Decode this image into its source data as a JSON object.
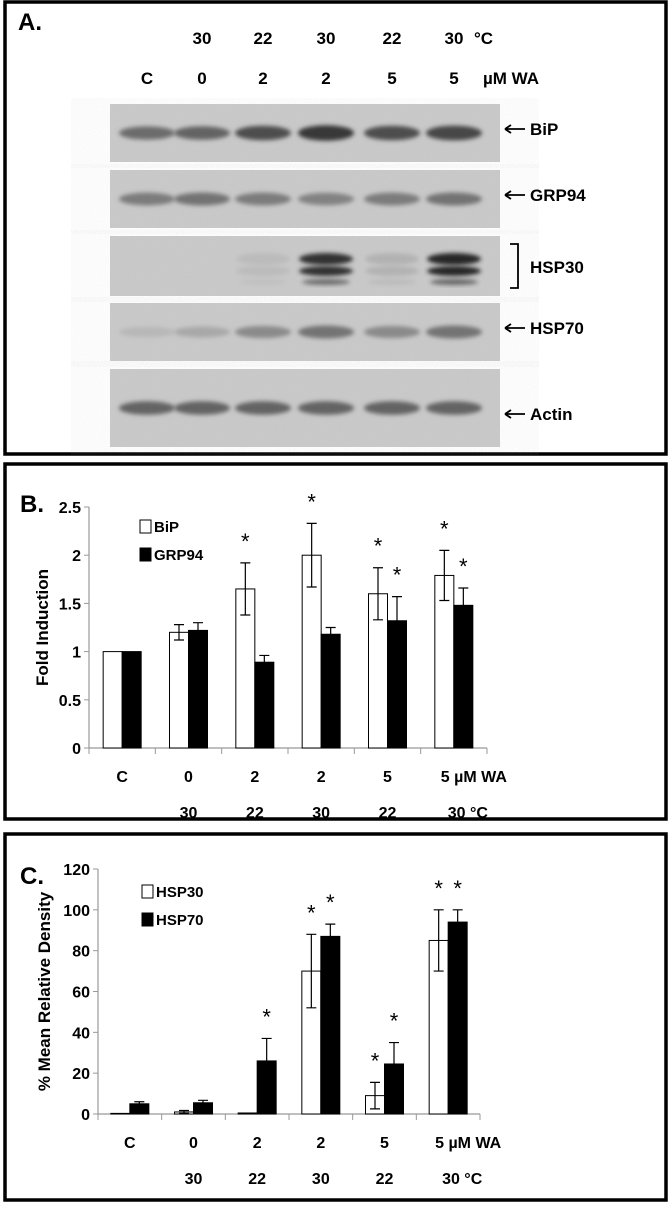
{
  "panelA": {
    "label": "A.",
    "temps": [
      "",
      "30",
      "22",
      "30",
      "22",
      "30"
    ],
    "temp_unit": "°C",
    "doses": [
      "C",
      "0",
      "2",
      "2",
      "5",
      "5"
    ],
    "dose_unit": "µM WA",
    "blots": [
      {
        "name": "BiP",
        "marker": "arrow",
        "intensity": [
          0.55,
          0.6,
          0.75,
          0.9,
          0.75,
          0.8
        ]
      },
      {
        "name": "GRP94",
        "marker": "arrow",
        "intensity": [
          0.45,
          0.5,
          0.45,
          0.4,
          0.45,
          0.5
        ]
      },
      {
        "name": "HSP30",
        "marker": "bracket",
        "intensity": [
          0,
          0,
          0.02,
          0.95,
          0.08,
          1.0
        ]
      },
      {
        "name": "HSP70",
        "marker": "arrow",
        "intensity": [
          0.05,
          0.15,
          0.35,
          0.5,
          0.35,
          0.5
        ]
      },
      {
        "name": "Actin",
        "marker": "arrow",
        "intensity": [
          0.6,
          0.6,
          0.6,
          0.6,
          0.6,
          0.6
        ]
      }
    ]
  },
  "chart_data": [
    {
      "type": "bar",
      "panel_label": "B.",
      "ylabel": "Fold Induction",
      "ylim": [
        0,
        2.5
      ],
      "yticks": [
        "0",
        "0.5",
        "1",
        "1.5",
        "2",
        "2.5"
      ],
      "categories": [
        "C",
        "0",
        "2",
        "2",
        "5",
        "5 µM WA"
      ],
      "categories_row2": [
        "",
        "30",
        "22",
        "30",
        "22",
        "30  °C"
      ],
      "legend_position": "top-left",
      "series": [
        {
          "name": "BiP",
          "fill": "#ffffff",
          "values": [
            1.0,
            1.2,
            1.65,
            2.0,
            1.6,
            1.79
          ],
          "errors": [
            0,
            0.08,
            0.27,
            0.33,
            0.27,
            0.26
          ],
          "significant": [
            false,
            false,
            true,
            true,
            true,
            true
          ]
        },
        {
          "name": "GRP94",
          "fill": "#000000",
          "values": [
            1.0,
            1.22,
            0.89,
            1.18,
            1.32,
            1.48
          ],
          "errors": [
            0,
            0.08,
            0.07,
            0.07,
            0.25,
            0.18
          ],
          "significant": [
            false,
            false,
            false,
            false,
            true,
            true
          ]
        }
      ],
      "significance_marker": "*"
    },
    {
      "type": "bar",
      "panel_label": "C.",
      "ylabel": "% Mean Relative Density",
      "ylim": [
        0,
        120
      ],
      "yticks": [
        "0",
        "20",
        "40",
        "60",
        "80",
        "100",
        "120"
      ],
      "categories": [
        "C",
        "0",
        "2",
        "2",
        "5",
        "5 µM WA"
      ],
      "categories_row2": [
        "",
        "30",
        "22",
        "30",
        "22",
        "30  °C"
      ],
      "legend_position": "top-left",
      "series": [
        {
          "name": "HSP30",
          "fill": "#ffffff",
          "values": [
            0.3,
            1.0,
            0.5,
            70,
            9,
            85
          ],
          "errors": [
            0,
            0.7,
            0,
            18,
            6.5,
            15
          ],
          "significant": [
            false,
            false,
            false,
            true,
            true,
            true
          ]
        },
        {
          "name": "HSP70",
          "fill": "#000000",
          "values": [
            5,
            5.5,
            26,
            87,
            24.5,
            94
          ],
          "errors": [
            1,
            1.2,
            11,
            6,
            10.5,
            6
          ],
          "significant": [
            false,
            false,
            true,
            true,
            true,
            true
          ]
        }
      ],
      "significance_marker": "*"
    }
  ]
}
